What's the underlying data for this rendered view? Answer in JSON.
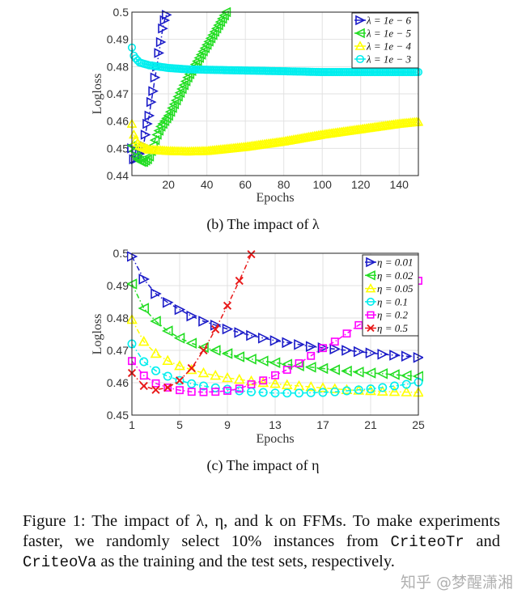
{
  "chart_data": [
    {
      "type": "line",
      "title": "",
      "xlabel": "Epochs",
      "ylabel": "Logloss",
      "xlim": [
        1,
        150
      ],
      "ylim": [
        0.44,
        0.5
      ],
      "xticks": [
        20,
        40,
        60,
        80,
        100,
        120,
        140
      ],
      "yticks": [
        0.44,
        0.45,
        0.46,
        0.47,
        0.48,
        0.49,
        0.5
      ],
      "grid": true,
      "legend_position": "top-right",
      "series": [
        {
          "name": "λ = 1e − 6",
          "color": "#1c1cc8",
          "marker": "triangle-right",
          "x": [
            1,
            2,
            3,
            4,
            5,
            6,
            7,
            8,
            9,
            10,
            11,
            12,
            13,
            14,
            15,
            16,
            17,
            18,
            19
          ],
          "y": [
            0.45,
            0.446,
            0.446,
            0.447,
            0.448,
            0.449,
            0.451,
            0.455,
            0.459,
            0.462,
            0.467,
            0.471,
            0.476,
            0.48,
            0.485,
            0.489,
            0.494,
            0.497,
            0.499
          ]
        },
        {
          "name": "λ = 1e − 5",
          "color": "#22dd22",
          "marker": "triangle-left",
          "x": [
            1,
            2,
            3,
            4,
            5,
            6,
            7,
            8,
            9,
            10,
            12,
            14,
            16,
            20,
            25,
            30,
            35,
            40,
            45,
            50
          ],
          "y": [
            0.451,
            0.449,
            0.447,
            0.446,
            0.4455,
            0.445,
            0.445,
            0.4455,
            0.446,
            0.447,
            0.451,
            0.455,
            0.458,
            0.462,
            0.469,
            0.476,
            0.482,
            0.488,
            0.494,
            0.5
          ]
        },
        {
          "name": "λ = 1e − 4",
          "color": "#ffff00",
          "marker": "triangle-up",
          "x": [
            1,
            2,
            3,
            5,
            10,
            20,
            30,
            40,
            60,
            80,
            100,
            120,
            140,
            150
          ],
          "y": [
            0.459,
            0.455,
            0.453,
            0.451,
            0.4495,
            0.449,
            0.4488,
            0.449,
            0.4505,
            0.4525,
            0.455,
            0.457,
            0.459,
            0.4597
          ]
        },
        {
          "name": "λ = 1e − 3",
          "color": "#00eeee",
          "marker": "circle",
          "x": [
            1,
            2,
            3,
            5,
            10,
            20,
            30,
            50,
            80,
            100,
            120,
            150
          ],
          "y": [
            0.487,
            0.484,
            0.483,
            0.4815,
            0.4805,
            0.4795,
            0.479,
            0.4787,
            0.4783,
            0.478,
            0.478,
            0.478
          ]
        }
      ]
    },
    {
      "type": "line",
      "title": "",
      "xlabel": "Epochs",
      "ylabel": "Logloss",
      "xlim": [
        1,
        25
      ],
      "ylim": [
        0.45,
        0.5
      ],
      "xticks": [
        1,
        5,
        9,
        13,
        17,
        21,
        25
      ],
      "yticks": [
        0.45,
        0.46,
        0.47,
        0.48,
        0.49,
        0.5
      ],
      "grid": true,
      "legend_position": "top-right",
      "series": [
        {
          "name": "η = 0.01",
          "color": "#1c1cc8",
          "marker": "triangle-right",
          "x": [
            1,
            2,
            3,
            4,
            5,
            6,
            7,
            8,
            9,
            10,
            11,
            12,
            13,
            14,
            15,
            16,
            17,
            18,
            19,
            20,
            21,
            22,
            23,
            24,
            25
          ],
          "y": [
            0.499,
            0.492,
            0.4875,
            0.4848,
            0.4826,
            0.4806,
            0.479,
            0.4778,
            0.4766,
            0.4755,
            0.4746,
            0.4738,
            0.473,
            0.4724,
            0.4718,
            0.4712,
            0.4708,
            0.4704,
            0.47,
            0.4696,
            0.4692,
            0.4688,
            0.4685,
            0.4682,
            0.4678
          ]
        },
        {
          "name": "η = 0.02",
          "color": "#22dd22",
          "marker": "triangle-left",
          "x": [
            1,
            2,
            3,
            4,
            5,
            6,
            7,
            8,
            9,
            10,
            11,
            12,
            13,
            14,
            15,
            16,
            17,
            18,
            19,
            20,
            21,
            22,
            23,
            24,
            25
          ],
          "y": [
            0.4905,
            0.483,
            0.479,
            0.476,
            0.4738,
            0.4722,
            0.4709,
            0.47,
            0.469,
            0.468,
            0.4673,
            0.4667,
            0.4662,
            0.4657,
            0.4652,
            0.4648,
            0.4644,
            0.464,
            0.4636,
            0.4633,
            0.463,
            0.4628,
            0.4625,
            0.4622,
            0.462
          ]
        },
        {
          "name": "η = 0.05",
          "color": "#ffff00",
          "marker": "triangle-up",
          "x": [
            1,
            2,
            3,
            4,
            5,
            6,
            7,
            8,
            9,
            10,
            11,
            12,
            13,
            14,
            15,
            16,
            17,
            18,
            19,
            20,
            21,
            22,
            23,
            24,
            25
          ],
          "y": [
            0.4795,
            0.4727,
            0.469,
            0.4668,
            0.4652,
            0.464,
            0.463,
            0.4622,
            0.4615,
            0.461,
            0.4605,
            0.46,
            0.4597,
            0.4593,
            0.459,
            0.4587,
            0.4584,
            0.4581,
            0.4578,
            0.4576,
            0.4575,
            0.4573,
            0.4572,
            0.4571,
            0.457
          ]
        },
        {
          "name": "η = 0.1",
          "color": "#00eeee",
          "marker": "circle",
          "x": [
            1,
            2,
            3,
            4,
            5,
            6,
            7,
            8,
            9,
            10,
            11,
            12,
            13,
            14,
            15,
            16,
            17,
            18,
            19,
            20,
            21,
            22,
            23,
            24,
            25
          ],
          "y": [
            0.472,
            0.4665,
            0.4637,
            0.462,
            0.4607,
            0.4597,
            0.459,
            0.4584,
            0.458,
            0.4575,
            0.4572,
            0.457,
            0.4568,
            0.4568,
            0.4568,
            0.4569,
            0.457,
            0.4572,
            0.4575,
            0.4578,
            0.4581,
            0.4585,
            0.459,
            0.4595,
            0.4602
          ]
        },
        {
          "name": "η = 0.2",
          "color": "#ff00ff",
          "marker": "square",
          "x": [
            1,
            2,
            3,
            4,
            5,
            6,
            7,
            8,
            9,
            10,
            11,
            12,
            13,
            14,
            15,
            16,
            17,
            18,
            19,
            20,
            21,
            22,
            23,
            24,
            25
          ],
          "y": [
            0.4667,
            0.4622,
            0.4598,
            0.4585,
            0.4577,
            0.4572,
            0.4571,
            0.4572,
            0.4575,
            0.4582,
            0.4595,
            0.4607,
            0.4623,
            0.464,
            0.466,
            0.4683,
            0.4707,
            0.4727,
            0.4752,
            0.4778,
            0.48,
            0.4825,
            0.485,
            0.4885,
            0.4915
          ]
        },
        {
          "name": "η = 0.5",
          "color": "#e81818",
          "marker": "x",
          "x": [
            1,
            2,
            3,
            4,
            5,
            6,
            7,
            8,
            9,
            10,
            11
          ],
          "y": [
            0.463,
            0.459,
            0.4578,
            0.4585,
            0.4607,
            0.4645,
            0.47,
            0.4765,
            0.4838,
            0.4915,
            0.4997
          ]
        }
      ]
    }
  ],
  "subcaptions": {
    "b": "(b) The impact of λ",
    "c": "(c) The impact of η"
  },
  "figure_caption": {
    "part1": "Figure 1:  The impact of λ, η, and k on FFMs.  To make experiments faster, we randomly select 10% instances from ",
    "code1": "CriteoTr",
    "part2": " and ",
    "code2": "CriteoVa",
    "part3": " as the training and the test sets, respectively."
  },
  "watermark": "知乎 @梦醒潇湘"
}
